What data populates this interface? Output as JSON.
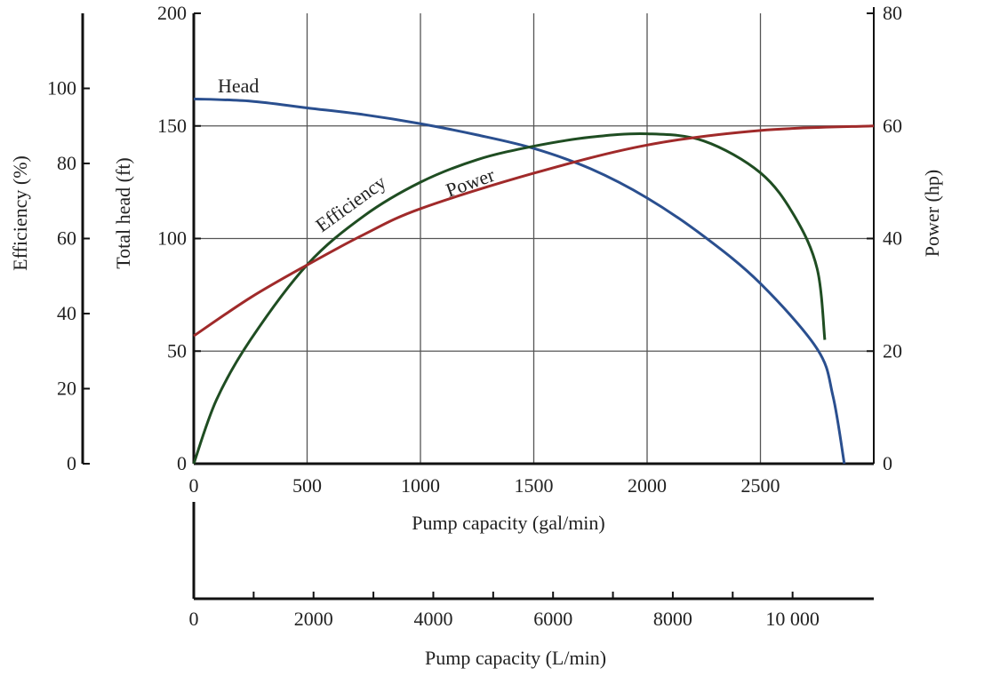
{
  "chart_data": {
    "type": "line",
    "x": {
      "label": "Pump capacity (gal/min)",
      "range": [
        0,
        3000
      ],
      "ticks": [
        0,
        500,
        1000,
        1500,
        2000,
        2500
      ]
    },
    "x2": {
      "label": "Pump capacity (L/min)",
      "range": [
        0,
        11356
      ],
      "ticks": [
        0,
        2000,
        4000,
        6000,
        8000,
        10000
      ],
      "tick_labels": [
        "0",
        "2000",
        "4000",
        "6000",
        "8000",
        "10 000"
      ],
      "minor_ticks": [
        1000,
        3000,
        5000,
        7000,
        9000
      ]
    },
    "y_head": {
      "label": "Total head (ft)",
      "range": [
        0,
        200
      ],
      "ticks": [
        0,
        50,
        100,
        150,
        200
      ]
    },
    "y_efficiency": {
      "label": "Efficiency (%)",
      "range": [
        0,
        120
      ],
      "ticks": [
        0,
        20,
        40,
        60,
        80,
        100
      ]
    },
    "y_power": {
      "label": "Power (hp)",
      "range": [
        0,
        80
      ],
      "ticks": [
        0,
        20,
        40,
        60,
        80
      ]
    },
    "grid": true,
    "series": [
      {
        "name": "Head",
        "axis": "y_head",
        "color": "#2a4f8f",
        "x": [
          0,
          250,
          500,
          750,
          1000,
          1250,
          1500,
          1750,
          2000,
          2250,
          2500,
          2750,
          2820,
          2870
        ],
        "y": [
          162,
          161,
          158,
          155,
          151,
          146,
          140,
          131,
          118,
          101,
          80,
          51,
          30,
          0
        ]
      },
      {
        "name": "Efficiency",
        "axis": "y_efficiency",
        "color": "#1f4d22",
        "x": [
          0,
          100,
          250,
          500,
          750,
          1000,
          1250,
          1500,
          1750,
          2000,
          2250,
          2500,
          2650,
          2750,
          2784
        ],
        "y": [
          0,
          17,
          33,
          53,
          66,
          75,
          81,
          84.6,
          87,
          87.9,
          86,
          77.5,
          66,
          52,
          33
        ]
      },
      {
        "name": "Power",
        "axis": "y_power",
        "color": "#a02a2a",
        "x": [
          0,
          250,
          500,
          750,
          1000,
          1500,
          2000,
          2500,
          3000
        ],
        "y": [
          22.7,
          29.5,
          35.3,
          40.7,
          45.3,
          51.6,
          56.6,
          59.2,
          60
        ]
      }
    ]
  }
}
